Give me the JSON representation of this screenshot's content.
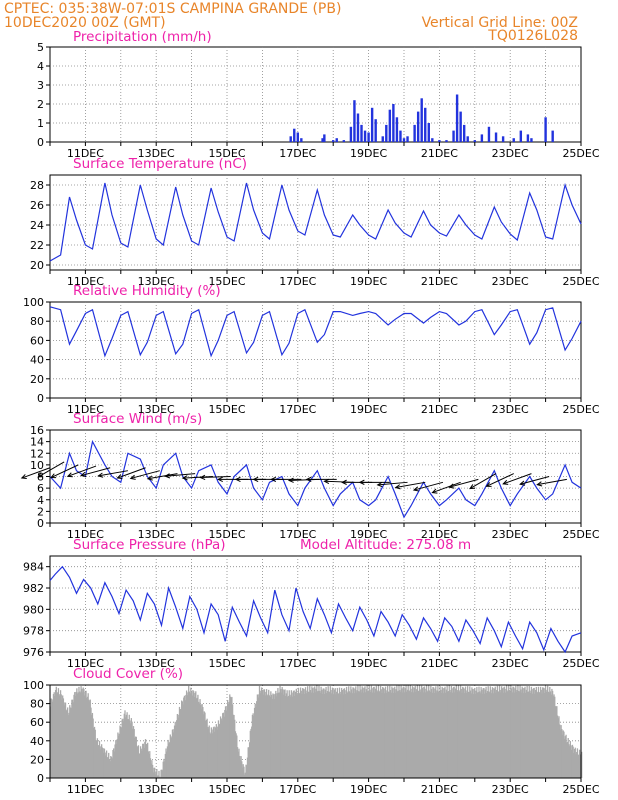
{
  "header": {
    "line1": "CPTEC:   035:38W-07:01S   CAMPINA GRANDE (PB)",
    "line2_left": "10DEC2020 00Z (GMT)",
    "line2_right": "Vertical Grid Line: 00Z",
    "line3_right": "TQ0126L028"
  },
  "colors": {
    "header": "#e8852a",
    "panel_title": "#ee22aa",
    "line": "#2233dd",
    "cloud": "#aaaaaa",
    "arrows": "#000000"
  },
  "chart_data": [
    {
      "id": "precipitation",
      "type": "bar",
      "title": "Precipitation (mm/h)",
      "ylim": [
        0,
        5
      ],
      "yticks": [
        0,
        1,
        2,
        3,
        4,
        5
      ],
      "xticks": [
        "11DEC",
        "13DEC",
        "15DEC",
        "17DEC",
        "19DEC",
        "21DEC",
        "23DEC",
        "25DEC"
      ],
      "xtick_days": [
        11,
        13,
        15,
        17,
        19,
        21,
        23,
        25
      ],
      "xlim_days": [
        10,
        25
      ],
      "x_days": [
        16.8,
        16.9,
        17.0,
        17.1,
        17.7,
        17.75,
        18.0,
        18.1,
        18.3,
        18.5,
        18.6,
        18.7,
        18.8,
        18.9,
        19.0,
        19.1,
        19.2,
        19.4,
        19.5,
        19.6,
        19.7,
        19.8,
        19.9,
        20.0,
        20.1,
        20.3,
        20.4,
        20.5,
        20.6,
        20.7,
        20.8,
        21.0,
        21.2,
        21.4,
        21.5,
        21.6,
        21.7,
        21.8,
        22.0,
        22.2,
        22.4,
        22.6,
        22.8,
        23.1,
        23.3,
        23.5,
        23.6,
        24.0,
        24.2
      ],
      "values": [
        0.3,
        0.7,
        0.5,
        0.2,
        0.2,
        0.4,
        0.1,
        0.2,
        0.1,
        0.8,
        2.2,
        1.5,
        0.9,
        0.6,
        0.5,
        1.8,
        1.2,
        0.3,
        0.9,
        1.7,
        2.0,
        1.3,
        0.6,
        0.2,
        0.3,
        0.9,
        1.6,
        2.3,
        1.8,
        1.0,
        0.2,
        0.1,
        0.1,
        0.6,
        2.5,
        1.6,
        0.9,
        0.3,
        0.1,
        0.4,
        0.8,
        0.5,
        0.3,
        0.2,
        0.6,
        0.4,
        0.2,
        1.3,
        0.6
      ]
    },
    {
      "id": "temperature",
      "type": "line",
      "title": "Surface Temperature (nC)",
      "ylim": [
        19.5,
        29
      ],
      "yticks": [
        20,
        22,
        24,
        26,
        28
      ],
      "xticks": [
        "11DEC",
        "13DEC",
        "15DEC",
        "17DEC",
        "19DEC",
        "21DEC",
        "23DEC",
        "25DEC"
      ],
      "xtick_days": [
        11,
        13,
        15,
        17,
        19,
        21,
        23,
        25
      ],
      "xlim_days": [
        10,
        25
      ],
      "x_days": [
        10,
        10.3,
        10.55,
        10.75,
        11.0,
        11.2,
        11.55,
        11.75,
        12.0,
        12.2,
        12.55,
        12.75,
        13.0,
        13.2,
        13.55,
        13.75,
        14.0,
        14.2,
        14.55,
        14.75,
        15.0,
        15.2,
        15.55,
        15.75,
        16.0,
        16.2,
        16.55,
        16.75,
        17.0,
        17.2,
        17.55,
        17.75,
        18.0,
        18.2,
        18.55,
        18.75,
        19.0,
        19.2,
        19.55,
        19.75,
        20.0,
        20.2,
        20.55,
        20.75,
        21.0,
        21.2,
        21.55,
        21.75,
        22.0,
        22.2,
        22.55,
        22.75,
        23.0,
        23.2,
        23.55,
        23.75,
        24.0,
        24.2,
        24.55,
        24.75,
        25.0
      ],
      "values": [
        20.4,
        21.0,
        26.8,
        24.5,
        22.0,
        21.6,
        28.2,
        25.0,
        22.2,
        21.8,
        28.0,
        25.5,
        22.6,
        22.0,
        27.8,
        25.0,
        22.4,
        22.0,
        27.7,
        25.3,
        22.8,
        22.4,
        28.2,
        25.5,
        23.2,
        22.6,
        28.0,
        25.5,
        23.4,
        23.0,
        27.5,
        25.0,
        23.0,
        22.8,
        25.0,
        24.0,
        23.0,
        22.6,
        25.5,
        24.2,
        23.2,
        22.8,
        25.4,
        24.0,
        23.2,
        22.9,
        25.0,
        24.0,
        23.0,
        22.6,
        25.8,
        24.3,
        23.1,
        22.5,
        27.2,
        25.5,
        22.8,
        22.6,
        28.0,
        26.0,
        24.1
      ]
    },
    {
      "id": "humidity",
      "type": "line",
      "title": "Relative Humidity (%)",
      "ylim": [
        0,
        100
      ],
      "yticks": [
        0,
        20,
        40,
        60,
        80,
        100
      ],
      "xticks": [
        "11DEC",
        "13DEC",
        "15DEC",
        "17DEC",
        "19DEC",
        "21DEC",
        "23DEC",
        "25DEC"
      ],
      "xtick_days": [
        11,
        13,
        15,
        17,
        19,
        21,
        23,
        25
      ],
      "xlim_days": [
        10,
        25
      ],
      "x_days": [
        10,
        10.3,
        10.55,
        10.75,
        11.0,
        11.2,
        11.55,
        11.75,
        12.0,
        12.2,
        12.55,
        12.75,
        13.0,
        13.2,
        13.55,
        13.75,
        14.0,
        14.2,
        14.55,
        14.75,
        15.0,
        15.2,
        15.55,
        15.75,
        16.0,
        16.2,
        16.55,
        16.75,
        17.0,
        17.2,
        17.55,
        17.75,
        18.0,
        18.2,
        18.55,
        18.75,
        19.0,
        19.2,
        19.55,
        19.75,
        20.0,
        20.2,
        20.55,
        20.75,
        21.0,
        21.2,
        21.55,
        21.75,
        22.0,
        22.2,
        22.55,
        22.75,
        23.0,
        23.2,
        23.55,
        23.75,
        24.0,
        24.2,
        24.55,
        24.75,
        25.0
      ],
      "values": [
        95,
        92,
        56,
        70,
        88,
        92,
        44,
        62,
        86,
        90,
        45,
        58,
        86,
        90,
        46,
        56,
        88,
        92,
        44,
        60,
        86,
        90,
        47,
        58,
        86,
        90,
        45,
        57,
        88,
        92,
        58,
        66,
        90,
        90,
        86,
        88,
        90,
        88,
        76,
        82,
        88,
        88,
        78,
        84,
        90,
        88,
        76,
        80,
        90,
        92,
        66,
        76,
        90,
        92,
        56,
        68,
        92,
        94,
        50,
        62,
        80
      ]
    },
    {
      "id": "wind",
      "type": "line",
      "title": "Surface Wind (m/s)",
      "ylim": [
        0,
        16
      ],
      "yticks": [
        0,
        2,
        4,
        6,
        8,
        10,
        12,
        14,
        16
      ],
      "xticks": [
        "11DEC",
        "13DEC",
        "15DEC",
        "17DEC",
        "19DEC",
        "21DEC",
        "23DEC",
        "25DEC"
      ],
      "xtick_days": [
        11,
        13,
        15,
        17,
        19,
        21,
        23,
        25
      ],
      "xlim_days": [
        10,
        25
      ],
      "x_days": [
        10,
        10.3,
        10.55,
        10.75,
        11.0,
        11.2,
        11.55,
        11.75,
        12.0,
        12.2,
        12.55,
        12.75,
        13.0,
        13.2,
        13.55,
        13.75,
        14.0,
        14.2,
        14.55,
        14.75,
        15.0,
        15.2,
        15.55,
        15.75,
        16.0,
        16.2,
        16.55,
        16.75,
        17.0,
        17.2,
        17.55,
        17.75,
        18.0,
        18.2,
        18.55,
        18.75,
        19.0,
        19.2,
        19.55,
        19.75,
        20.0,
        20.2,
        20.55,
        20.75,
        21.0,
        21.2,
        21.55,
        21.75,
        22.0,
        22.2,
        22.55,
        22.75,
        23.0,
        23.2,
        23.55,
        23.75,
        24.0,
        24.2,
        24.55,
        24.75,
        25.0
      ],
      "values": [
        8,
        6,
        12,
        9,
        8,
        14,
        10,
        8,
        7,
        12,
        11,
        8,
        6,
        10,
        12,
        8,
        6,
        9,
        10,
        7,
        5,
        8,
        10,
        6,
        4,
        7,
        8,
        5,
        3,
        6,
        9,
        6,
        3,
        5,
        7,
        4,
        3,
        4,
        8,
        5,
        1,
        3,
        7,
        5,
        3,
        4,
        6,
        4,
        3,
        5,
        9,
        6,
        3,
        5,
        8,
        6,
        4,
        5,
        10,
        7,
        6
      ],
      "arrows": [
        {
          "day": 10.0,
          "speed": 9.5,
          "dir_deg": 200
        },
        {
          "day": 10.4,
          "speed": 10.5,
          "dir_deg": 210
        },
        {
          "day": 10.8,
          "speed": 10.0,
          "dir_deg": 205
        },
        {
          "day": 11.3,
          "speed": 9.8,
          "dir_deg": 200
        },
        {
          "day": 11.7,
          "speed": 9.5,
          "dir_deg": 195
        },
        {
          "day": 12.2,
          "speed": 9.0,
          "dir_deg": 190
        },
        {
          "day": 12.7,
          "speed": 9.5,
          "dir_deg": 200
        },
        {
          "day": 13.1,
          "speed": 9.0,
          "dir_deg": 195
        },
        {
          "day": 13.6,
          "speed": 8.5,
          "dir_deg": 190
        },
        {
          "day": 14.1,
          "speed": 8.5,
          "dir_deg": 185
        },
        {
          "day": 14.6,
          "speed": 8.0,
          "dir_deg": 183
        },
        {
          "day": 15.1,
          "speed": 8.0,
          "dir_deg": 182
        },
        {
          "day": 15.6,
          "speed": 7.5,
          "dir_deg": 180
        },
        {
          "day": 16.1,
          "speed": 7.5,
          "dir_deg": 180
        },
        {
          "day": 16.6,
          "speed": 7.5,
          "dir_deg": 180
        },
        {
          "day": 17.1,
          "speed": 7.5,
          "dir_deg": 180
        },
        {
          "day": 17.6,
          "speed": 7.5,
          "dir_deg": 182
        },
        {
          "day": 18.1,
          "speed": 7.5,
          "dir_deg": 180
        },
        {
          "day": 18.6,
          "speed": 7.0,
          "dir_deg": 178
        },
        {
          "day": 19.1,
          "speed": 7.0,
          "dir_deg": 180
        },
        {
          "day": 19.6,
          "speed": 7.0,
          "dir_deg": 180
        },
        {
          "day": 20.1,
          "speed": 7.0,
          "dir_deg": 185
        },
        {
          "day": 20.6,
          "speed": 7.0,
          "dir_deg": 190
        },
        {
          "day": 21.1,
          "speed": 7.0,
          "dir_deg": 195
        },
        {
          "day": 21.6,
          "speed": 7.0,
          "dir_deg": 200
        },
        {
          "day": 22.1,
          "speed": 7.5,
          "dir_deg": 195
        },
        {
          "day": 22.6,
          "speed": 8.5,
          "dir_deg": 210
        },
        {
          "day": 23.1,
          "speed": 8.5,
          "dir_deg": 205
        },
        {
          "day": 23.6,
          "speed": 8.5,
          "dir_deg": 200
        },
        {
          "day": 24.1,
          "speed": 8.0,
          "dir_deg": 195
        },
        {
          "day": 24.6,
          "speed": 7.5,
          "dir_deg": 190
        }
      ]
    },
    {
      "id": "pressure",
      "type": "line",
      "title": "Surface Pressure (hPa)",
      "subtitle": "Model Altitude: 275.08 m",
      "ylim": [
        976,
        985
      ],
      "yticks": [
        976,
        978,
        980,
        982,
        984
      ],
      "xticks": [
        "11DEC",
        "13DEC",
        "15DEC",
        "17DEC",
        "19DEC",
        "21DEC",
        "23DEC",
        "25DEC"
      ],
      "xtick_days": [
        11,
        13,
        15,
        17,
        19,
        21,
        23,
        25
      ],
      "xlim_days": [
        10,
        25
      ],
      "x_days": [
        10,
        10.15,
        10.35,
        10.55,
        10.75,
        10.95,
        11.15,
        11.35,
        11.55,
        11.75,
        11.95,
        12.15,
        12.35,
        12.55,
        12.75,
        12.95,
        13.15,
        13.35,
        13.55,
        13.75,
        13.95,
        14.15,
        14.35,
        14.55,
        14.75,
        14.95,
        15.15,
        15.35,
        15.55,
        15.75,
        15.95,
        16.15,
        16.35,
        16.55,
        16.75,
        16.95,
        17.15,
        17.35,
        17.55,
        17.75,
        17.95,
        18.15,
        18.35,
        18.55,
        18.75,
        18.95,
        19.15,
        19.35,
        19.55,
        19.75,
        19.95,
        20.15,
        20.35,
        20.55,
        20.75,
        20.95,
        21.15,
        21.35,
        21.55,
        21.75,
        21.95,
        22.15,
        22.35,
        22.55,
        22.75,
        22.95,
        23.15,
        23.35,
        23.55,
        23.75,
        23.95,
        24.15,
        24.35,
        24.55,
        24.75,
        25.0
      ],
      "values": [
        982.7,
        983.3,
        984.0,
        983.0,
        981.5,
        982.8,
        982.0,
        980.5,
        982.5,
        981.2,
        979.6,
        981.8,
        980.8,
        979.0,
        981.5,
        980.5,
        978.5,
        982.0,
        980.2,
        978.2,
        981.2,
        980.0,
        977.8,
        980.5,
        979.5,
        977.0,
        980.2,
        978.8,
        977.5,
        980.8,
        979.2,
        977.8,
        981.8,
        979.5,
        978.0,
        982.0,
        979.8,
        978.2,
        981.0,
        979.5,
        977.8,
        980.5,
        979.2,
        978.0,
        980.2,
        979.0,
        977.5,
        979.8,
        978.8,
        977.5,
        979.5,
        978.5,
        977.2,
        979.2,
        978.2,
        977.0,
        979.2,
        978.4,
        977.0,
        979.0,
        978.0,
        976.8,
        979.2,
        978.0,
        976.5,
        978.8,
        977.5,
        976.3,
        978.8,
        977.8,
        976.2,
        978.2,
        977.0,
        976.0,
        977.5,
        977.8
      ]
    },
    {
      "id": "cloud",
      "type": "area",
      "title": "Cloud Cover (%)",
      "ylim": [
        0,
        100
      ],
      "yticks": [
        0,
        20,
        40,
        60,
        80,
        100
      ],
      "xticks": [
        "11DEC",
        "13DEC",
        "15DEC",
        "17DEC",
        "19DEC",
        "21DEC",
        "23DEC",
        "25DEC"
      ],
      "xtick_days": [
        11,
        13,
        15,
        17,
        19,
        21,
        23,
        25
      ],
      "xlim_days": [
        10,
        25
      ],
      "x_days": [
        10.0,
        10.15,
        10.3,
        10.5,
        10.7,
        10.9,
        11.1,
        11.3,
        11.5,
        11.7,
        11.9,
        12.1,
        12.3,
        12.5,
        12.7,
        12.9,
        13.1,
        13.3,
        13.5,
        13.7,
        13.9,
        14.1,
        14.3,
        14.5,
        14.7,
        14.9,
        15.1,
        15.3,
        15.5,
        15.7,
        15.9,
        16.1,
        16.3,
        16.5,
        16.7,
        16.9,
        17.1,
        17.3,
        17.5,
        17.7,
        17.9,
        18.1,
        18.5,
        19.0,
        19.5,
        20.0,
        20.5,
        21.0,
        21.5,
        22.0,
        22.5,
        23.0,
        23.5,
        23.8,
        24.0,
        24.2,
        24.4,
        24.6,
        24.8,
        25.0
      ],
      "values": [
        80,
        95,
        90,
        70,
        92,
        96,
        85,
        40,
        30,
        20,
        45,
        70,
        60,
        28,
        40,
        10,
        2,
        35,
        55,
        80,
        95,
        90,
        75,
        50,
        55,
        70,
        90,
        30,
        5,
        65,
        95,
        92,
        88,
        96,
        90,
        92,
        94,
        95,
        96,
        94,
        95,
        93,
        95,
        96,
        95,
        96,
        96,
        95,
        96,
        94,
        95,
        96,
        95,
        94,
        96,
        92,
        55,
        40,
        30,
        25
      ]
    }
  ]
}
